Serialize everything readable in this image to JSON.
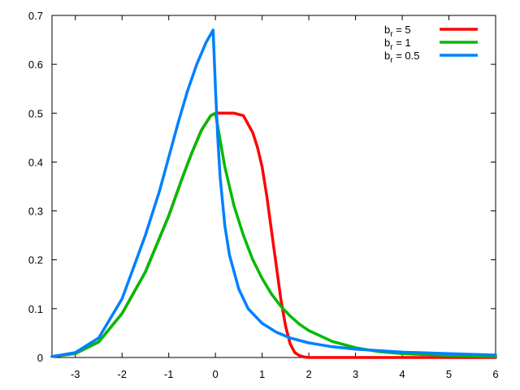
{
  "chart_data": {
    "type": "line",
    "title": "",
    "xlabel": "",
    "ylabel": "",
    "xlim": [
      -3.5,
      6
    ],
    "ylim": [
      0,
      0.7
    ],
    "grid": false,
    "legend_position": "top-right",
    "x_ticks": [
      "-3",
      "-2",
      "-1",
      "0",
      "1",
      "2",
      "3",
      "4",
      "5",
      "6"
    ],
    "y_ticks": [
      "0",
      "0.1",
      "0.2",
      "0.3",
      "0.4",
      "0.5",
      "0.6",
      "0.7"
    ],
    "legend_prefix": "b",
    "legend_subscript": "r",
    "series": [
      {
        "legend_value": " =   5",
        "color": "#ff0000",
        "x": [
          -3.5,
          -3.0,
          -2.5,
          -2.0,
          -1.5,
          -1.0,
          -0.7,
          -0.5,
          -0.3,
          -0.1,
          0.0,
          0.2,
          0.4,
          0.6,
          0.8,
          0.9,
          1.0,
          1.1,
          1.2,
          1.3,
          1.4,
          1.5,
          1.6,
          1.7,
          1.8,
          1.9,
          2.0,
          2.2,
          2.5,
          3.0,
          4.0,
          5.0,
          6.0
        ],
        "y": [
          0.002,
          0.008,
          0.032,
          0.09,
          0.175,
          0.29,
          0.37,
          0.42,
          0.465,
          0.495,
          0.5,
          0.5,
          0.5,
          0.495,
          0.46,
          0.43,
          0.39,
          0.33,
          0.26,
          0.19,
          0.12,
          0.065,
          0.028,
          0.01,
          0.004,
          0.001,
          0.0,
          0.0,
          0.0,
          0.0,
          0.0,
          0.0,
          0.0
        ]
      },
      {
        "legend_value": " =   1",
        "color": "#00bb00",
        "x": [
          -3.5,
          -3.0,
          -2.5,
          -2.0,
          -1.5,
          -1.0,
          -0.7,
          -0.5,
          -0.3,
          -0.1,
          0.0,
          0.2,
          0.4,
          0.6,
          0.8,
          1.0,
          1.2,
          1.4,
          1.6,
          1.8,
          2.0,
          2.5,
          3.0,
          3.5,
          4.0,
          5.0,
          6.0
        ],
        "y": [
          0.002,
          0.008,
          0.032,
          0.09,
          0.175,
          0.29,
          0.37,
          0.42,
          0.465,
          0.495,
          0.5,
          0.39,
          0.31,
          0.25,
          0.2,
          0.162,
          0.13,
          0.105,
          0.085,
          0.068,
          0.055,
          0.033,
          0.02,
          0.012,
          0.008,
          0.004,
          0.002
        ]
      },
      {
        "legend_value": " = 0.5",
        "color": "#0080ff",
        "x": [
          -3.5,
          -3.0,
          -2.5,
          -2.0,
          -1.5,
          -1.2,
          -1.0,
          -0.8,
          -0.6,
          -0.4,
          -0.2,
          -0.05,
          0.0,
          0.05,
          0.1,
          0.2,
          0.3,
          0.5,
          0.7,
          1.0,
          1.3,
          1.6,
          2.0,
          2.5,
          3.0,
          4.0,
          5.0,
          6.0
        ],
        "y": [
          0.002,
          0.01,
          0.04,
          0.12,
          0.25,
          0.34,
          0.41,
          0.48,
          0.545,
          0.6,
          0.645,
          0.67,
          0.55,
          0.45,
          0.37,
          0.27,
          0.21,
          0.14,
          0.1,
          0.07,
          0.052,
          0.04,
          0.03,
          0.022,
          0.017,
          0.011,
          0.008,
          0.005
        ]
      }
    ]
  }
}
